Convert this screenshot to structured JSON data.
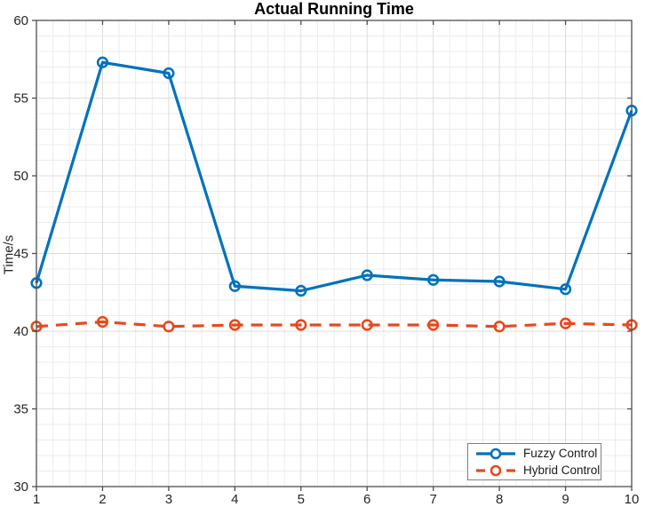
{
  "chart_data": {
    "type": "line",
    "title": "Actual Running Time",
    "xlabel": "",
    "ylabel": "Time/s",
    "x": [
      1,
      2,
      3,
      4,
      5,
      6,
      7,
      8,
      9,
      10
    ],
    "xlim": [
      1,
      10
    ],
    "ylim": [
      30,
      60
    ],
    "x_ticks": [
      1,
      2,
      3,
      4,
      5,
      6,
      7,
      8,
      9,
      10
    ],
    "y_ticks": [
      30,
      35,
      40,
      45,
      50,
      55,
      60
    ],
    "x_minor_step": 0.25,
    "y_minor_step": 1,
    "grid": "on",
    "minor_grid": "on",
    "series": [
      {
        "name": "Fuzzy Control",
        "color": "#0072BD",
        "line_style": "solid",
        "marker": "circle",
        "values": [
          43.1,
          57.3,
          56.6,
          42.9,
          42.6,
          43.6,
          43.3,
          43.2,
          42.7,
          54.2
        ]
      },
      {
        "name": "Hybrid Control",
        "color": "#E8491D",
        "line_style": "dashed",
        "marker": "circle",
        "values": [
          40.3,
          40.6,
          40.3,
          40.4,
          40.4,
          40.4,
          40.4,
          40.3,
          40.5,
          40.4
        ]
      }
    ],
    "legend": {
      "position": "bottom-right",
      "entries": [
        "Fuzzy Control",
        "Hybrid Control"
      ]
    },
    "colors": {
      "axis": "#4d4d4d",
      "tick_label": "#262626",
      "major_grid": "#dcdcdc",
      "minor_grid": "#ececec",
      "legend_border": "#808080",
      "background": "#ffffff"
    }
  }
}
